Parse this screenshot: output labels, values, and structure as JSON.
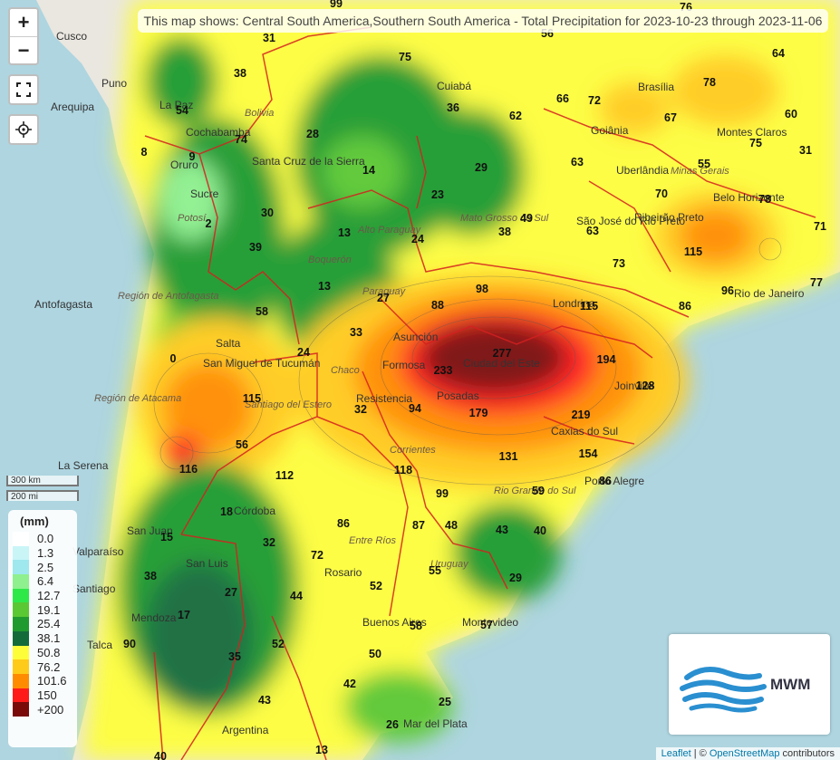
{
  "title": "This map shows: Central South America,Southern South America - Total Precipitation for 2023-10-23 through 2023-11-06",
  "controls": {
    "zoom_in": "+",
    "zoom_out": "−"
  },
  "scale": {
    "km": "300 km",
    "mi": "200 mi"
  },
  "legend": {
    "title": "(mm)",
    "items": [
      {
        "label": "0.0",
        "color": "#ffffff"
      },
      {
        "label": "1.3",
        "color": "#c9f5f7"
      },
      {
        "label": "2.5",
        "color": "#9ee8ee"
      },
      {
        "label": "6.4",
        "color": "#8ef08e"
      },
      {
        "label": "12.7",
        "color": "#2ee84a"
      },
      {
        "label": "19.1",
        "color": "#5ac832"
      },
      {
        "label": "25.4",
        "color": "#1f9a2e"
      },
      {
        "label": "38.1",
        "color": "#146b3a"
      },
      {
        "label": "50.8",
        "color": "#fdfd3a"
      },
      {
        "label": "76.2",
        "color": "#ffcb1a"
      },
      {
        "label": "101.6",
        "color": "#ff8c00"
      },
      {
        "label": "150",
        "color": "#ff1a1a"
      },
      {
        "label": "+200",
        "color": "#7a0a0a"
      }
    ]
  },
  "logo": {
    "text": "MWM"
  },
  "attribution": {
    "leaflet": "Leaflet",
    "sep": " | © ",
    "osm": "OpenStreetMap",
    "rest": " contributors"
  },
  "values": [
    "99",
    "76",
    "56",
    "31",
    "75",
    "64",
    "38",
    "66",
    "72",
    "78",
    "54",
    "36",
    "62",
    "67",
    "60",
    "74",
    "28",
    "8",
    "9",
    "29",
    "63",
    "55",
    "75",
    "31",
    "14",
    "23",
    "70",
    "78",
    "49",
    "38",
    "2",
    "30",
    "24",
    "13",
    "63",
    "71",
    "39",
    "115",
    "73",
    "77",
    "13",
    "96",
    "27",
    "88",
    "98",
    "115",
    "86",
    "58",
    "33",
    "24",
    "277",
    "194",
    "0",
    "233",
    "128",
    "115",
    "32",
    "94",
    "179",
    "219",
    "56",
    "154",
    "131",
    "116",
    "112",
    "118",
    "59",
    "86",
    "99",
    "18",
    "86",
    "87",
    "48",
    "43",
    "40",
    "15",
    "32",
    "72",
    "38",
    "55",
    "29",
    "27",
    "44",
    "52",
    "17",
    "58",
    "57",
    "90",
    "35",
    "52",
    "50",
    "42",
    "43",
    "25",
    "26",
    "13",
    "40"
  ],
  "places": [
    "Cusco",
    "Puno",
    "Arequipa",
    "La Paz",
    "Cochabamba",
    "Bolivia",
    "Oruro",
    "Sucre",
    "Potosí",
    "Santa Cruz de la Sierra",
    "Cuiabá",
    "Brasília",
    "Goiânia",
    "Montes Claros",
    "Uberlândia",
    "Minas Gerais",
    "Belo Horizonte",
    "São José do Rio Preto",
    "Ribeirão Preto",
    "Mato Grosso do Sul",
    "Alto Paraguay",
    "Boquerón",
    "Paraguay",
    "Antofagasta",
    "Región de Antofagasta",
    "Salta",
    "Asunción",
    "Formosa",
    "Ciudad del Este",
    "Londrina",
    "Rio de Janeiro",
    "Resistencia",
    "Posadas",
    "San Miguel de Tucumán",
    "Santiago del Estero",
    "Chaco",
    "Joinville",
    "Caxias do Sul",
    "Corrientes",
    "Región de Atacama",
    "La Serena",
    "Porto Alegre",
    "Rio Grande do Sul",
    "Córdoba",
    "Entre Ríos",
    "Uruguay",
    "San Juan",
    "Valparaíso",
    "Santiago",
    "San Luis",
    "Rosario",
    "Mendoza",
    "Buenos Aires",
    "Montevideo",
    "Talca",
    "Argentina",
    "Mar del Plata"
  ]
}
